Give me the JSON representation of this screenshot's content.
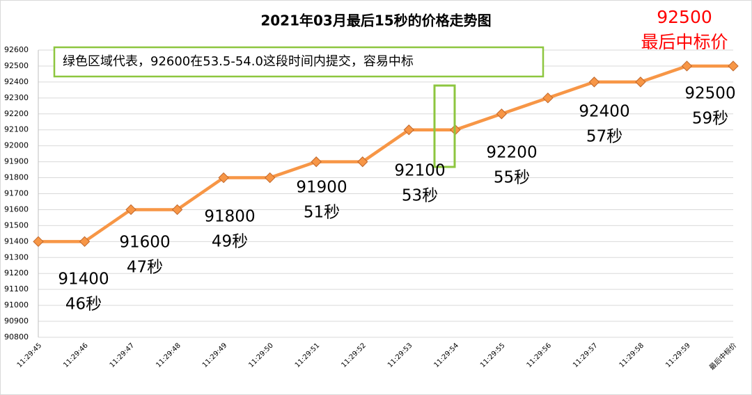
{
  "chart_data": {
    "type": "line",
    "title": "2021年03月最后15秒的价格走势图",
    "categories": [
      "11:29:45",
      "11:29:46",
      "11:29:47",
      "11:29:48",
      "11:29:49",
      "11:29:50",
      "11:29:51",
      "11:29:52",
      "11:29:53",
      "11:29:54",
      "11:29:55",
      "11:29:56",
      "11:29:57",
      "11:29:58",
      "11:29:59",
      "最后中标价"
    ],
    "values": [
      91400,
      91400,
      91600,
      91600,
      91800,
      91800,
      91900,
      91900,
      92100,
      92100,
      92200,
      92300,
      92400,
      92400,
      92500,
      92500
    ],
    "color": "#f79646",
    "ylim": [
      90800,
      92600
    ],
    "yticks": [
      90800,
      90900,
      91000,
      91100,
      91200,
      91300,
      91400,
      91500,
      91600,
      91700,
      91800,
      91900,
      92000,
      92100,
      92200,
      92300,
      92400,
      92500,
      92600
    ],
    "grid": true,
    "note": "绿色区域代表，92600在53.5-54.0这段时间内提交，容易中标",
    "highlight_annotation": [
      "92500",
      "最后中标价"
    ],
    "annotations": [
      [
        "91400",
        "46秒"
      ],
      [
        "91600",
        "47秒"
      ],
      [
        "91800",
        "49秒"
      ],
      [
        "91900",
        "51秒"
      ],
      [
        "92100",
        "53秒"
      ],
      [
        "92200",
        "55秒"
      ],
      [
        "92400",
        "57秒"
      ],
      [
        "92500",
        "59秒"
      ]
    ]
  }
}
